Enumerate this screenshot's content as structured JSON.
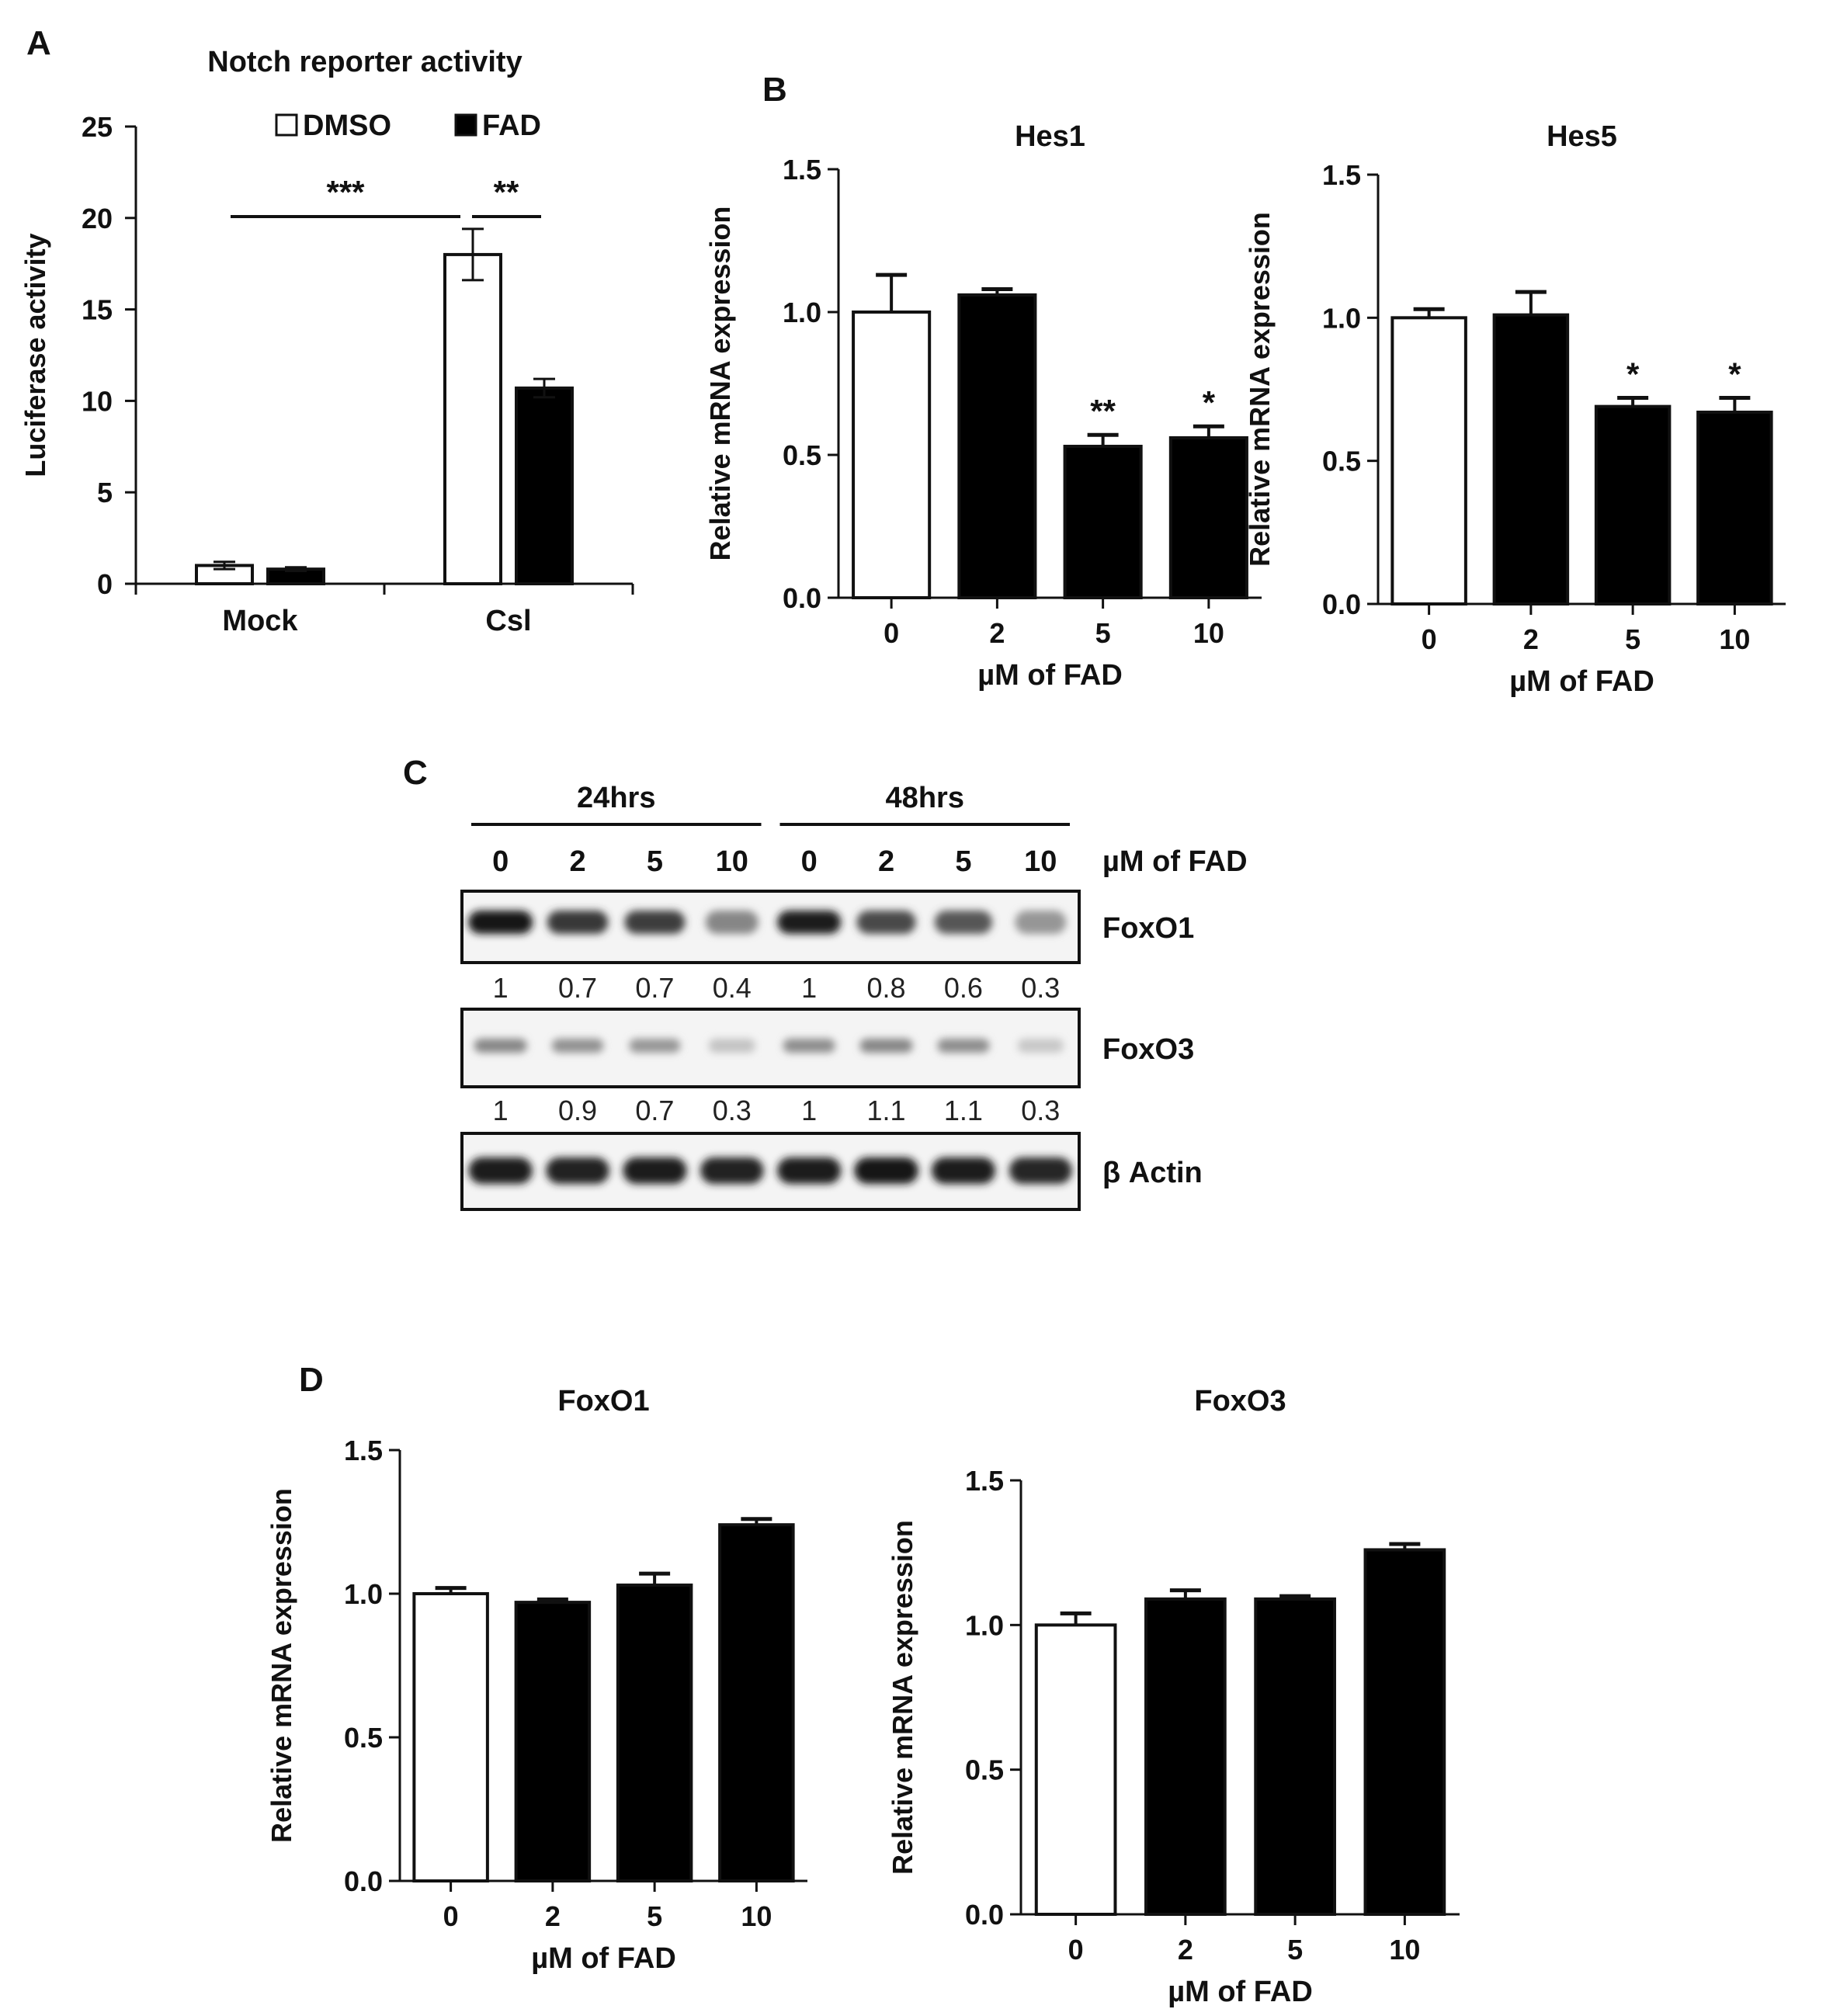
{
  "panel_labels": {
    "a": "A",
    "b": "B",
    "c": "C",
    "d": "D"
  },
  "colors": {
    "ink": "#111111",
    "dmso": "#ffffff",
    "fad": "#000000",
    "grid": "#000000"
  },
  "chart_data": [
    {
      "id": "A",
      "type": "bar",
      "title": "Notch reporter activity",
      "ylabel": "Luciferase activity",
      "xlabel": "",
      "categories": [
        "Mock",
        "Csl"
      ],
      "ylim": [
        0,
        25
      ],
      "yticks": [
        "0",
        "5",
        "10",
        "15",
        "20",
        "25"
      ],
      "series": [
        {
          "name": "DMSO",
          "values": [
            1.0,
            18.0
          ],
          "errors": [
            0.2,
            1.4
          ]
        },
        {
          "name": "FAD",
          "values": [
            0.8,
            10.7
          ],
          "errors": [
            0.1,
            0.5
          ]
        }
      ],
      "legend": "top",
      "significance": [
        {
          "label": "***",
          "between": "Mock vs Csl (DMSO)"
        },
        {
          "label": "**",
          "between": "Csl DMSO vs Csl FAD"
        }
      ]
    },
    {
      "id": "B-Hes1",
      "type": "bar",
      "title": "Hes1",
      "ylabel": "Relative mRNA expression",
      "xlabel": "µM of FAD",
      "categories": [
        "0",
        "2",
        "5",
        "10"
      ],
      "values": [
        1.0,
        1.06,
        0.53,
        0.56
      ],
      "errors": [
        0.13,
        0.02,
        0.04,
        0.04
      ],
      "fills": [
        "white",
        "black",
        "black",
        "black"
      ],
      "annotations": [
        "",
        "",
        "**",
        "*"
      ],
      "ylim": [
        0,
        1.5
      ],
      "yticks": [
        "0.0",
        "0.5",
        "1.0",
        "1.5"
      ]
    },
    {
      "id": "B-Hes5",
      "type": "bar",
      "title": "Hes5",
      "ylabel": "Relative mRNA expression",
      "xlabel": "µM of FAD",
      "categories": [
        "0",
        "2",
        "5",
        "10"
      ],
      "values": [
        1.0,
        1.01,
        0.69,
        0.67
      ],
      "errors": [
        0.03,
        0.08,
        0.03,
        0.05
      ],
      "fills": [
        "white",
        "black",
        "black",
        "black"
      ],
      "annotations": [
        "",
        "",
        "*",
        "*"
      ],
      "ylim": [
        0,
        1.5
      ],
      "yticks": [
        "0.0",
        "0.5",
        "1.0",
        "1.5"
      ]
    },
    {
      "id": "D-FoxO1",
      "type": "bar",
      "title": "FoxO1",
      "ylabel": "Relative mRNA expression",
      "xlabel": "µM of FAD",
      "categories": [
        "0",
        "2",
        "5",
        "10"
      ],
      "values": [
        1.0,
        0.97,
        1.03,
        1.24
      ],
      "errors": [
        0.02,
        0.01,
        0.04,
        0.02
      ],
      "fills": [
        "white",
        "black",
        "black",
        "black"
      ],
      "annotations": [
        "",
        "",
        "",
        ""
      ],
      "ylim": [
        0,
        1.5
      ],
      "yticks": [
        "0.0",
        "0.5",
        "1.0",
        "1.5"
      ]
    },
    {
      "id": "D-FoxO3",
      "type": "bar",
      "title": "FoxO3",
      "ylabel": "Relative mRNA expression",
      "xlabel": "µM of FAD",
      "categories": [
        "0",
        "2",
        "5",
        "10"
      ],
      "values": [
        1.0,
        1.09,
        1.09,
        1.26
      ],
      "errors": [
        0.04,
        0.03,
        0.01,
        0.02
      ],
      "fills": [
        "white",
        "black",
        "black",
        "black"
      ],
      "annotations": [
        "",
        "",
        "",
        ""
      ],
      "ylim": [
        0,
        1.5
      ],
      "yticks": [
        "0.0",
        "0.5",
        "1.0",
        "1.5"
      ]
    }
  ],
  "western_blot": {
    "time_groups": [
      "24hrs",
      "48hrs"
    ],
    "lanes": [
      "0",
      "2",
      "5",
      "10",
      "0",
      "2",
      "5",
      "10"
    ],
    "dose_label": "µM of FAD",
    "blots": [
      {
        "name": "FoxO1",
        "intensities": [
          0.95,
          0.8,
          0.78,
          0.45,
          0.92,
          0.72,
          0.66,
          0.38
        ]
      },
      {
        "name": "FoxO3",
        "intensities": [
          0.45,
          0.4,
          0.38,
          0.18,
          0.42,
          0.45,
          0.42,
          0.16
        ]
      },
      {
        "name": "β Actin",
        "intensities": [
          0.92,
          0.9,
          0.92,
          0.9,
          0.92,
          0.94,
          0.92,
          0.88
        ]
      }
    ],
    "quantifications": [
      {
        "after": "FoxO1",
        "values": [
          "1",
          "0.7",
          "0.7",
          "0.4",
          "1",
          "0.8",
          "0.6",
          "0.3"
        ]
      },
      {
        "after": "FoxO3",
        "values": [
          "1",
          "0.9",
          "0.7",
          "0.3",
          "1",
          "1.1",
          "1.1",
          "0.3"
        ]
      }
    ]
  }
}
